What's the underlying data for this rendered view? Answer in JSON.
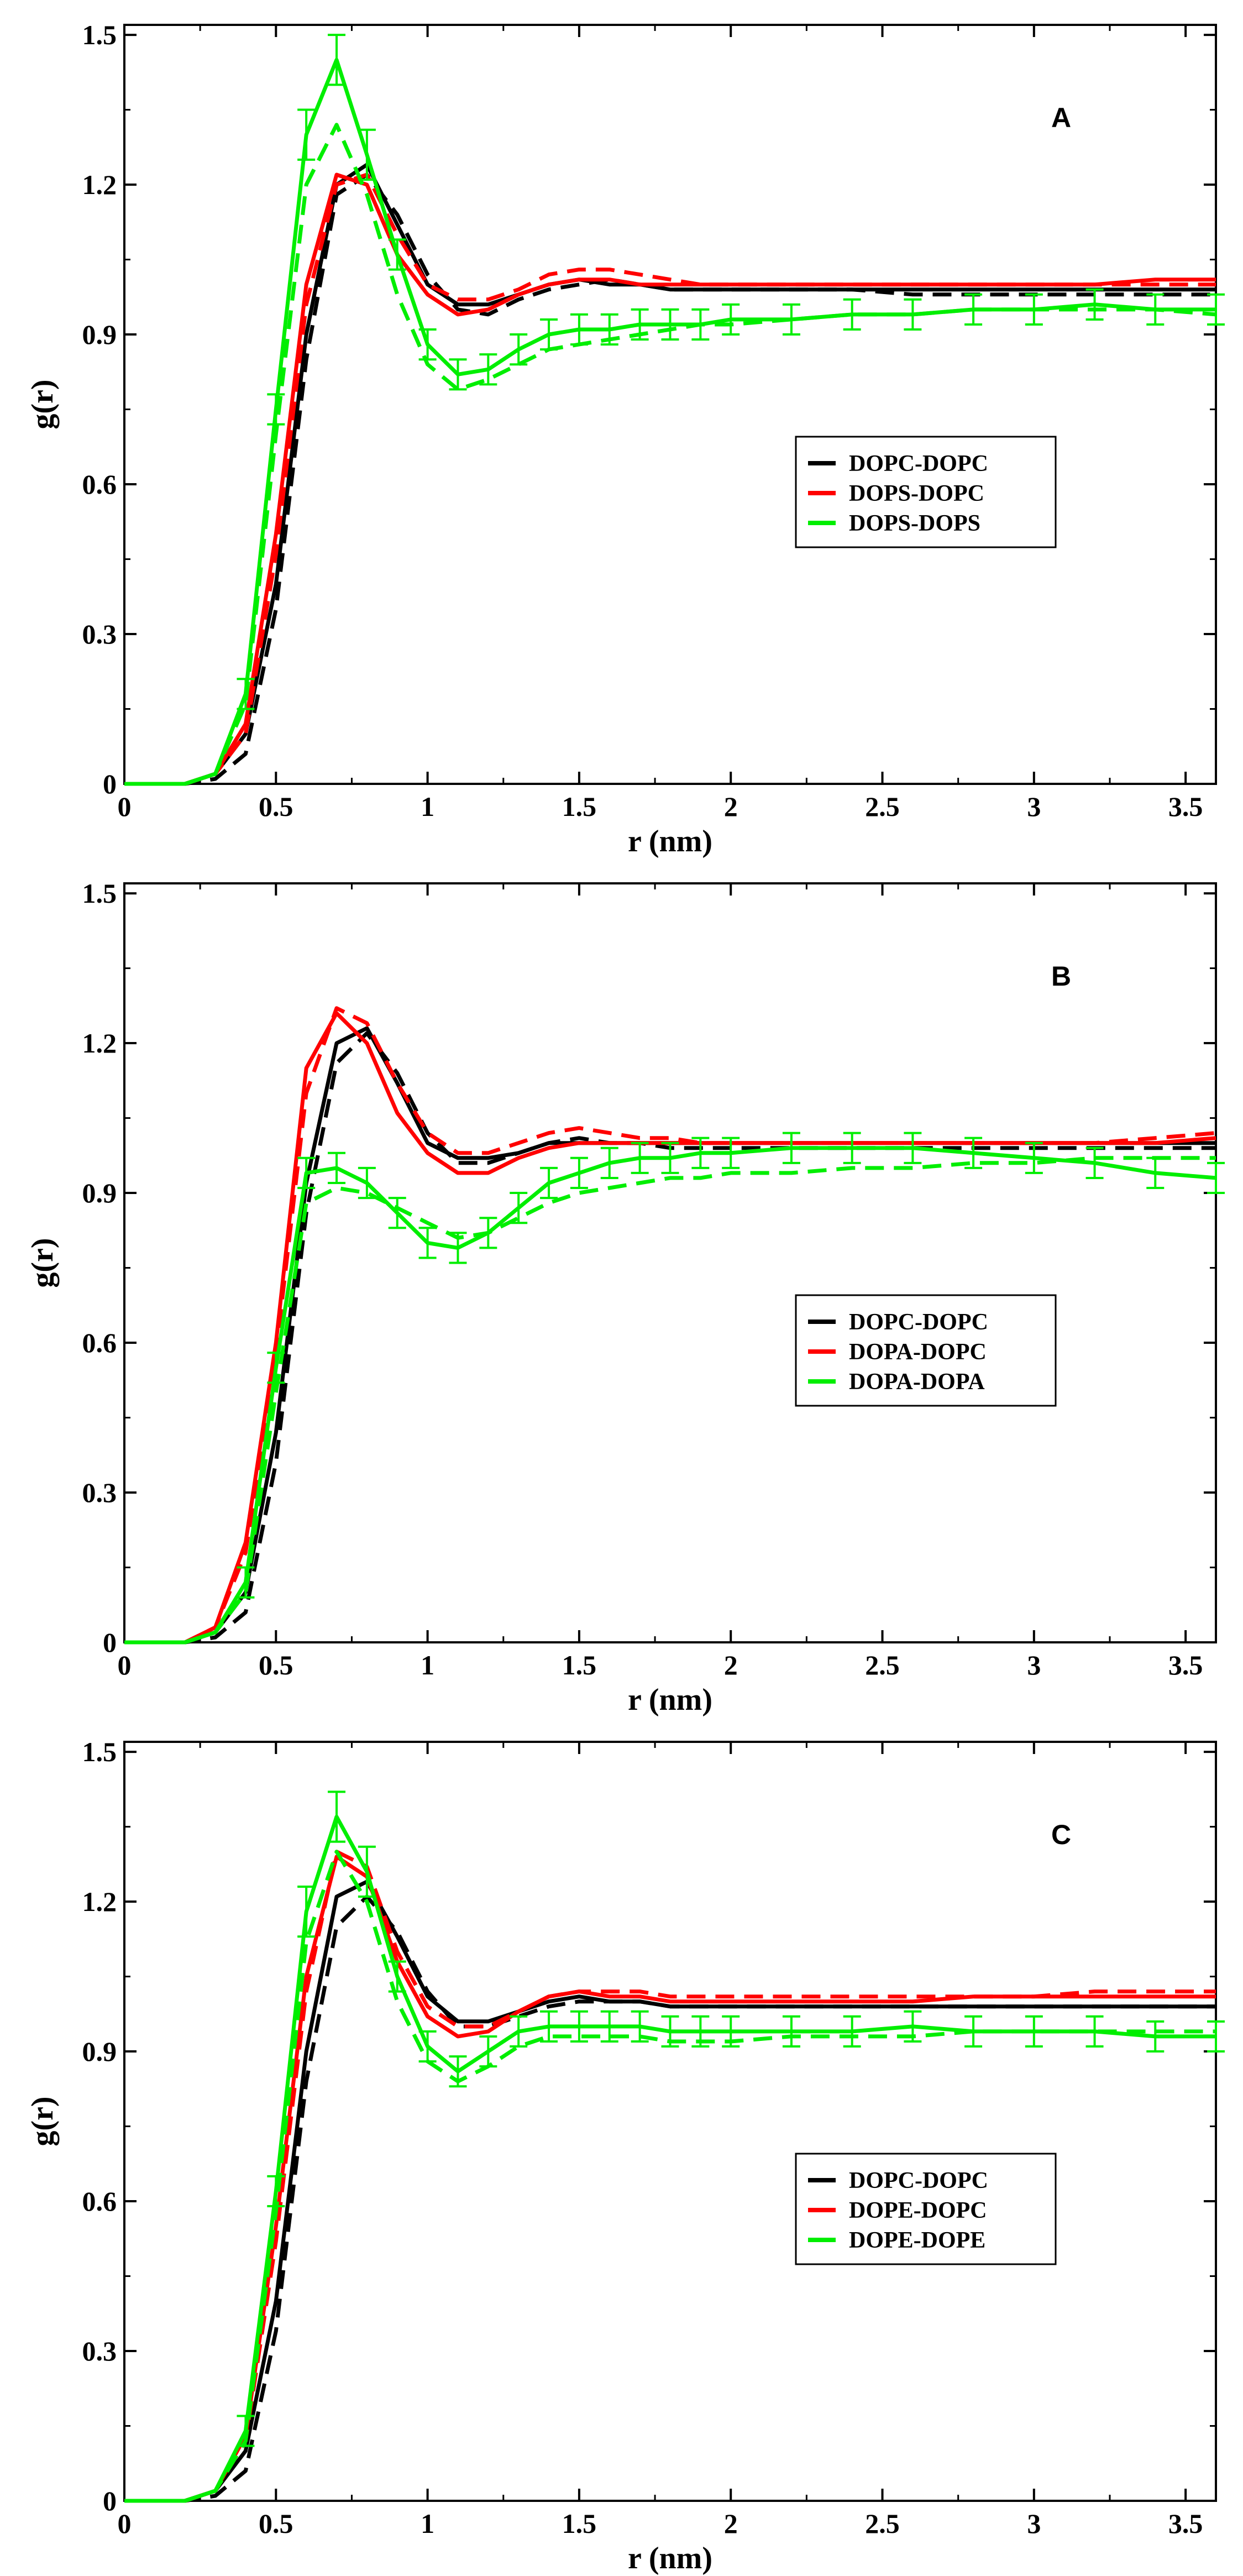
{
  "chart_data": [
    {
      "type": "line",
      "panel_label": "A",
      "xlabel": "r (nm)",
      "ylabel": "g(r)",
      "xlim": [
        0,
        3.6
      ],
      "ylim": [
        0,
        1.52
      ],
      "xticks": [
        0,
        0.5,
        1,
        1.5,
        2,
        2.5,
        3,
        3.5
      ],
      "xtick_labels": [
        "0",
        "0.5",
        "1",
        "1.5",
        "2",
        "2.5",
        "3",
        "3.5"
      ],
      "yticks": [
        0,
        0.3,
        0.6,
        0.9,
        1.2,
        1.5
      ],
      "ytick_labels": [
        "0",
        "0.3",
        "0.6",
        "0.9",
        "1.2",
        "1.5"
      ],
      "legend_position": "center-right",
      "legend": [
        {
          "label": "DOPC-DOPC",
          "color": "#000000"
        },
        {
          "label": "DOPS-DOPC",
          "color": "#ff0000"
        },
        {
          "label": "DOPS-DOPS",
          "color": "#00ee00"
        }
      ],
      "x": [
        0,
        0.1,
        0.2,
        0.3,
        0.4,
        0.5,
        0.6,
        0.7,
        0.8,
        0.9,
        1.0,
        1.1,
        1.2,
        1.3,
        1.4,
        1.5,
        1.6,
        1.7,
        1.8,
        1.9,
        2.0,
        2.2,
        2.4,
        2.6,
        2.8,
        3.0,
        3.2,
        3.4,
        3.6
      ],
      "series": [
        {
          "name": "DOPC-DOPC",
          "style": "solid",
          "color": "#000000",
          "error_bars": false,
          "values": [
            0,
            0,
            0,
            0.02,
            0.1,
            0.4,
            0.9,
            1.2,
            1.24,
            1.12,
            1.0,
            0.96,
            0.96,
            0.98,
            1.0,
            1.01,
            1.0,
            1.0,
            0.99,
            0.99,
            0.99,
            0.99,
            0.99,
            0.99,
            0.99,
            0.99,
            0.99,
            0.99,
            0.99
          ]
        },
        {
          "name": "DOPC-DOPC",
          "style": "dashed",
          "color": "#000000",
          "error_bars": false,
          "values": [
            0,
            0,
            0,
            0.01,
            0.06,
            0.35,
            0.85,
            1.18,
            1.22,
            1.14,
            1.02,
            0.95,
            0.94,
            0.97,
            0.99,
            1.0,
            1.01,
            1.0,
            0.99,
            0.99,
            0.99,
            0.99,
            0.99,
            0.98,
            0.98,
            0.98,
            0.98,
            0.98,
            0.98
          ]
        },
        {
          "name": "DOPS-DOPC",
          "style": "solid",
          "color": "#ff0000",
          "error_bars": false,
          "values": [
            0,
            0,
            0,
            0.02,
            0.12,
            0.5,
            1.0,
            1.22,
            1.2,
            1.06,
            0.98,
            0.94,
            0.95,
            0.98,
            1.0,
            1.01,
            1.01,
            1.0,
            1.0,
            1.0,
            1.0,
            1.0,
            1.0,
            1.0,
            1.0,
            1.0,
            1.0,
            1.01,
            1.01
          ]
        },
        {
          "name": "DOPS-DOPC",
          "style": "dashed",
          "color": "#ff0000",
          "error_bars": false,
          "values": [
            0,
            0,
            0,
            0.02,
            0.1,
            0.46,
            0.96,
            1.2,
            1.22,
            1.1,
            1.0,
            0.97,
            0.97,
            0.99,
            1.02,
            1.03,
            1.03,
            1.02,
            1.01,
            1.0,
            1.0,
            1.0,
            1.0,
            1.0,
            1.0,
            1.0,
            1.0,
            1.0,
            1.0
          ]
        },
        {
          "name": "DOPS-DOPS",
          "style": "solid",
          "color": "#00ee00",
          "error_bars": true,
          "values": [
            0,
            0,
            0,
            0.02,
            0.18,
            0.75,
            1.3,
            1.45,
            1.26,
            1.06,
            0.88,
            0.82,
            0.83,
            0.87,
            0.9,
            0.91,
            0.91,
            0.92,
            0.92,
            0.92,
            0.93,
            0.93,
            0.94,
            0.94,
            0.95,
            0.95,
            0.96,
            0.95,
            0.95
          ]
        },
        {
          "name": "DOPS-DOPS",
          "style": "dashed",
          "color": "#00ee00",
          "error_bars": false,
          "values": [
            0,
            0,
            0,
            0.02,
            0.16,
            0.7,
            1.2,
            1.32,
            1.18,
            0.98,
            0.84,
            0.79,
            0.81,
            0.84,
            0.87,
            0.88,
            0.89,
            0.9,
            0.91,
            0.92,
            0.92,
            0.93,
            0.94,
            0.94,
            0.95,
            0.95,
            0.95,
            0.95,
            0.94
          ]
        }
      ]
    },
    {
      "type": "line",
      "panel_label": "B",
      "xlabel": "r (nm)",
      "ylabel": "g(r)",
      "xlim": [
        0,
        3.6
      ],
      "ylim": [
        0,
        1.52
      ],
      "xticks": [
        0,
        0.5,
        1,
        1.5,
        2,
        2.5,
        3,
        3.5
      ],
      "xtick_labels": [
        "0",
        "0.5",
        "1",
        "1.5",
        "2",
        "2.5",
        "3",
        "3.5"
      ],
      "yticks": [
        0,
        0.3,
        0.6,
        0.9,
        1.2,
        1.5
      ],
      "ytick_labels": [
        "0",
        "0.3",
        "0.6",
        "0.9",
        "1.2",
        "1.5"
      ],
      "legend_position": "center-right",
      "legend": [
        {
          "label": "DOPC-DOPC",
          "color": "#000000"
        },
        {
          "label": "DOPA-DOPC",
          "color": "#ff0000"
        },
        {
          "label": "DOPA-DOPA",
          "color": "#00ee00"
        }
      ],
      "x": [
        0,
        0.1,
        0.2,
        0.3,
        0.4,
        0.5,
        0.6,
        0.7,
        0.8,
        0.9,
        1.0,
        1.1,
        1.2,
        1.3,
        1.4,
        1.5,
        1.6,
        1.7,
        1.8,
        1.9,
        2.0,
        2.2,
        2.4,
        2.6,
        2.8,
        3.0,
        3.2,
        3.4,
        3.6
      ],
      "series": [
        {
          "name": "DOPC-DOPC",
          "style": "solid",
          "color": "#000000",
          "error_bars": false,
          "values": [
            0,
            0,
            0,
            0.02,
            0.1,
            0.42,
            0.92,
            1.2,
            1.23,
            1.12,
            1.0,
            0.97,
            0.97,
            0.98,
            1.0,
            1.0,
            1.0,
            1.0,
            1.0,
            1.0,
            1.0,
            1.0,
            1.0,
            1.0,
            1.0,
            1.0,
            1.0,
            1.0,
            1.0
          ]
        },
        {
          "name": "DOPC-DOPC",
          "style": "dashed",
          "color": "#000000",
          "error_bars": false,
          "values": [
            0,
            0,
            0,
            0.01,
            0.06,
            0.36,
            0.86,
            1.16,
            1.22,
            1.14,
            1.02,
            0.96,
            0.96,
            0.98,
            1.0,
            1.01,
            1.0,
            1.0,
            0.99,
            0.99,
            0.99,
            0.99,
            0.99,
            0.99,
            0.99,
            0.99,
            0.99,
            0.99,
            0.99
          ]
        },
        {
          "name": "DOPA-DOPC",
          "style": "solid",
          "color": "#ff0000",
          "error_bars": false,
          "values": [
            0,
            0,
            0,
            0.03,
            0.2,
            0.6,
            1.15,
            1.26,
            1.2,
            1.06,
            0.98,
            0.94,
            0.94,
            0.97,
            0.99,
            1.0,
            1.0,
            1.0,
            1.0,
            1.0,
            1.0,
            1.0,
            1.0,
            1.0,
            1.0,
            1.0,
            1.0,
            1.0,
            1.01
          ]
        },
        {
          "name": "DOPA-DOPC",
          "style": "dashed",
          "color": "#ff0000",
          "error_bars": false,
          "values": [
            0,
            0,
            0,
            0.03,
            0.18,
            0.58,
            1.1,
            1.27,
            1.24,
            1.12,
            1.02,
            0.98,
            0.98,
            1.0,
            1.02,
            1.03,
            1.02,
            1.01,
            1.01,
            1.0,
            1.0,
            1.0,
            1.0,
            1.0,
            1.0,
            1.0,
            1.0,
            1.01,
            1.02
          ]
        },
        {
          "name": "DOPA-DOPA",
          "style": "solid",
          "color": "#00ee00",
          "error_bars": true,
          "values": [
            0,
            0,
            0,
            0.02,
            0.12,
            0.55,
            0.94,
            0.95,
            0.92,
            0.86,
            0.8,
            0.79,
            0.82,
            0.87,
            0.92,
            0.94,
            0.96,
            0.97,
            0.97,
            0.98,
            0.98,
            0.99,
            0.99,
            0.99,
            0.98,
            0.97,
            0.96,
            0.94,
            0.93
          ]
        },
        {
          "name": "DOPA-DOPA",
          "style": "dashed",
          "color": "#00ee00",
          "error_bars": false,
          "values": [
            0,
            0,
            0,
            0.02,
            0.1,
            0.5,
            0.88,
            0.91,
            0.9,
            0.87,
            0.84,
            0.81,
            0.82,
            0.85,
            0.88,
            0.9,
            0.91,
            0.92,
            0.93,
            0.93,
            0.94,
            0.94,
            0.95,
            0.95,
            0.96,
            0.96,
            0.97,
            0.97,
            0.97
          ]
        }
      ]
    },
    {
      "type": "line",
      "panel_label": "C",
      "xlabel": "r (nm)",
      "ylabel": "g(r)",
      "xlim": [
        0,
        3.6
      ],
      "ylim": [
        0,
        1.52
      ],
      "xticks": [
        0,
        0.5,
        1,
        1.5,
        2,
        2.5,
        3,
        3.5
      ],
      "xtick_labels": [
        "0",
        "0.5",
        "1",
        "1.5",
        "2",
        "2.5",
        "3",
        "3.5"
      ],
      "yticks": [
        0,
        0.3,
        0.6,
        0.9,
        1.2,
        1.5
      ],
      "ytick_labels": [
        "0",
        "0.3",
        "0.6",
        "0.9",
        "1.2",
        "1.5"
      ],
      "legend_position": "center-right",
      "legend": [
        {
          "label": "DOPC-DOPC",
          "color": "#000000"
        },
        {
          "label": "DOPE-DOPC",
          "color": "#ff0000"
        },
        {
          "label": "DOPE-DOPE",
          "color": "#00ee00"
        }
      ],
      "x": [
        0,
        0.1,
        0.2,
        0.3,
        0.4,
        0.5,
        0.6,
        0.7,
        0.8,
        0.9,
        1.0,
        1.1,
        1.2,
        1.3,
        1.4,
        1.5,
        1.6,
        1.7,
        1.8,
        1.9,
        2.0,
        2.2,
        2.4,
        2.6,
        2.8,
        3.0,
        3.2,
        3.4,
        3.6
      ],
      "series": [
        {
          "name": "DOPC-DOPC",
          "style": "solid",
          "color": "#000000",
          "error_bars": false,
          "values": [
            0,
            0,
            0,
            0.02,
            0.1,
            0.4,
            0.9,
            1.21,
            1.24,
            1.13,
            1.01,
            0.96,
            0.96,
            0.98,
            1.0,
            1.01,
            1.0,
            1.0,
            0.99,
            0.99,
            0.99,
            0.99,
            0.99,
            0.99,
            0.99,
            0.99,
            0.99,
            0.99,
            0.99
          ]
        },
        {
          "name": "DOPC-DOPC",
          "style": "dashed",
          "color": "#000000",
          "error_bars": false,
          "values": [
            0,
            0,
            0,
            0.01,
            0.06,
            0.34,
            0.84,
            1.15,
            1.21,
            1.14,
            1.02,
            0.95,
            0.95,
            0.97,
            0.99,
            1.0,
            1.0,
            1.0,
            0.99,
            0.99,
            0.99,
            0.99,
            0.99,
            0.99,
            0.99,
            0.99,
            0.99,
            0.99,
            0.99
          ]
        },
        {
          "name": "DOPE-DOPC",
          "style": "solid",
          "color": "#ff0000",
          "error_bars": false,
          "values": [
            0,
            0,
            0,
            0.02,
            0.13,
            0.55,
            1.05,
            1.29,
            1.25,
            1.08,
            0.97,
            0.93,
            0.94,
            0.98,
            1.01,
            1.02,
            1.01,
            1.01,
            1.0,
            1.0,
            1.0,
            1.0,
            1.0,
            1.0,
            1.01,
            1.01,
            1.01,
            1.01,
            1.01
          ]
        },
        {
          "name": "DOPE-DOPC",
          "style": "dashed",
          "color": "#ff0000",
          "error_bars": false,
          "values": [
            0,
            0,
            0,
            0.02,
            0.12,
            0.52,
            1.02,
            1.3,
            1.27,
            1.1,
            0.99,
            0.95,
            0.95,
            0.98,
            1.01,
            1.02,
            1.02,
            1.02,
            1.01,
            1.01,
            1.01,
            1.01,
            1.01,
            1.01,
            1.01,
            1.01,
            1.02,
            1.02,
            1.02
          ]
        },
        {
          "name": "DOPE-DOPE",
          "style": "solid",
          "color": "#00ee00",
          "error_bars": true,
          "values": [
            0,
            0,
            0,
            0.02,
            0.14,
            0.62,
            1.18,
            1.37,
            1.26,
            1.05,
            0.91,
            0.86,
            0.9,
            0.94,
            0.95,
            0.95,
            0.95,
            0.95,
            0.94,
            0.94,
            0.94,
            0.94,
            0.94,
            0.95,
            0.94,
            0.94,
            0.94,
            0.93,
            0.93
          ]
        },
        {
          "name": "DOPE-DOPE",
          "style": "dashed",
          "color": "#00ee00",
          "error_bars": false,
          "values": [
            0,
            0,
            0,
            0.02,
            0.12,
            0.58,
            1.12,
            1.3,
            1.2,
            1.0,
            0.88,
            0.84,
            0.87,
            0.91,
            0.93,
            0.93,
            0.93,
            0.93,
            0.92,
            0.92,
            0.92,
            0.93,
            0.93,
            0.93,
            0.94,
            0.94,
            0.94,
            0.94,
            0.94
          ]
        }
      ]
    }
  ]
}
